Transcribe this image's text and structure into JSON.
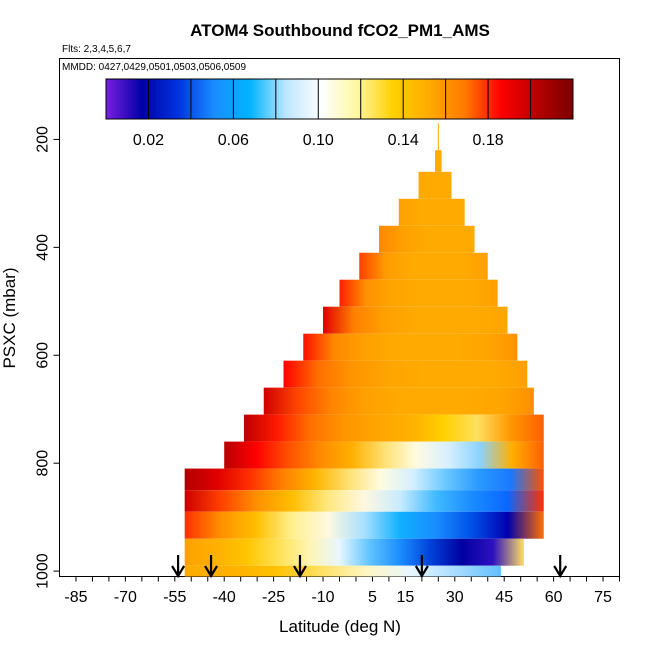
{
  "chart_data": {
    "type": "heatmap",
    "title": "ATOM4 Southbound fCO2_PM1_AMS",
    "flights_note": "Flts: 2,3,4,5,6,7",
    "dates_note": "MMDD: 0427,0429,0501,0503,0506,0509",
    "xlabel": "Latitude (deg N)",
    "ylabel": "PSXC (mbar)",
    "xlim": [
      -90,
      80
    ],
    "ylim": [
      1010,
      50
    ],
    "y_reversed": true,
    "x_ticks": [
      -85,
      -70,
      -55,
      -40,
      -25,
      -10,
      5,
      15,
      30,
      45,
      60,
      75
    ],
    "y_ticks": [
      200,
      400,
      600,
      800,
      1000
    ],
    "colorbar": {
      "range": [
        0.0,
        0.22
      ],
      "tick_values": [
        0.02,
        0.06,
        0.1,
        0.14,
        0.18
      ],
      "tick_labels": [
        "0.02",
        "0.06",
        "0.10",
        "0.14",
        "0.18"
      ],
      "colors": [
        "#7a1fe0",
        "#0000a8",
        "#0033e0",
        "#1a8cff",
        "#00b4ff",
        "#bde6ff",
        "#ffffff",
        "#fff7a0",
        "#ffd000",
        "#ffaa00",
        "#ff7a00",
        "#ff0000",
        "#b80000",
        "#7a0000"
      ]
    },
    "arrow_latitudes": [
      -54,
      -44,
      -17,
      20,
      62
    ],
    "levels": [
      {
        "p_top": 220,
        "p_bot": 260,
        "lat_min": 24,
        "lat_max": 26,
        "colors": [
          "#ffaa00"
        ]
      },
      {
        "p_top": 260,
        "p_bot": 310,
        "lat_min": 19,
        "lat_max": 29,
        "colors": [
          "#ffaa00"
        ]
      },
      {
        "p_top": 310,
        "p_bot": 360,
        "lat_min": 13,
        "lat_max": 33,
        "colors": [
          "#ffa000",
          "#ffaa00",
          "#ffaa00",
          "#ffaa00"
        ]
      },
      {
        "p_top": 360,
        "p_bot": 410,
        "lat_min": 7,
        "lat_max": 36,
        "colors": [
          "#ff8800",
          "#ffa000",
          "#ffaa00",
          "#ffaa00",
          "#ffaa00"
        ]
      },
      {
        "p_top": 410,
        "p_bot": 460,
        "lat_min": 1,
        "lat_max": 40,
        "colors": [
          "#ff4000",
          "#ff9a00",
          "#ffaa00",
          "#ffaa00",
          "#ffaa00",
          "#ffa000"
        ]
      },
      {
        "p_top": 460,
        "p_bot": 510,
        "lat_min": -5,
        "lat_max": 43,
        "colors": [
          "#ff2000",
          "#ff9000",
          "#ffa500",
          "#ffaa00",
          "#ffaa00",
          "#ffaa00",
          "#ffa000"
        ]
      },
      {
        "p_top": 510,
        "p_bot": 560,
        "lat_min": -10,
        "lat_max": 46,
        "colors": [
          "#e00000",
          "#ff8000",
          "#ffa000",
          "#ffaa00",
          "#ffaa00",
          "#ffaa00",
          "#ffa500"
        ]
      },
      {
        "p_top": 560,
        "p_bot": 610,
        "lat_min": -16,
        "lat_max": 49,
        "colors": [
          "#ff1000",
          "#ff8800",
          "#ffa000",
          "#ffaa00",
          "#ffaa00",
          "#ffaa00",
          "#ffa500",
          "#ff9500"
        ]
      },
      {
        "p_top": 610,
        "p_bot": 660,
        "lat_min": -22,
        "lat_max": 52,
        "colors": [
          "#ff0000",
          "#ff7000",
          "#ff9500",
          "#ffa500",
          "#ffaa00",
          "#ffaa00",
          "#ffaa00",
          "#ffa000"
        ]
      },
      {
        "p_top": 660,
        "p_bot": 710,
        "lat_min": -28,
        "lat_max": 54,
        "colors": [
          "#d00000",
          "#ff4500",
          "#ff8500",
          "#ffa000",
          "#ffaa00",
          "#ffaa00",
          "#ffaa00",
          "#ffa500",
          "#ff9000"
        ]
      },
      {
        "p_top": 710,
        "p_bot": 760,
        "lat_min": -34,
        "lat_max": 57,
        "colors": [
          "#c00000",
          "#ff1a00",
          "#ff7000",
          "#ff9500",
          "#ffa500",
          "#ffb000",
          "#ffd000",
          "#ffe060",
          "#ff9800",
          "#ff6000"
        ]
      },
      {
        "p_top": 760,
        "p_bot": 810,
        "lat_min": -40,
        "lat_max": 57,
        "colors": [
          "#b80000",
          "#ff0000",
          "#ff5000",
          "#ff8a00",
          "#ffb000",
          "#ffe070",
          "#fffbe0",
          "#d8f0ff",
          "#8ad2ff",
          "#ffb000",
          "#ff6000"
        ]
      },
      {
        "p_top": 810,
        "p_bot": 850,
        "lat_min": -52,
        "lat_max": 57,
        "colors": [
          "#b00000",
          "#e00000",
          "#ff3000",
          "#ff8000",
          "#ffb400",
          "#ffe070",
          "#fffce0",
          "#d4efff",
          "#6ac8ff",
          "#2a9aff",
          "#1a78ff",
          "#ff5000"
        ]
      },
      {
        "p_top": 850,
        "p_bot": 890,
        "lat_min": -52,
        "lat_max": 57,
        "colors": [
          "#cc0000",
          "#ff4000",
          "#ff9000",
          "#ffbe00",
          "#ffe880",
          "#fff8e0",
          "#c8ebff",
          "#40baff",
          "#1a8cff",
          "#0a66ff",
          "#ff3000"
        ]
      },
      {
        "p_top": 890,
        "p_bot": 940,
        "lat_min": -52,
        "lat_max": 57,
        "colors": [
          "#ff3000",
          "#ff9000",
          "#ffc000",
          "#fff090",
          "#fff8e0",
          "#a8e0ff",
          "#10b0ff",
          "#1a8cff",
          "#0050e8",
          "#0000b0",
          "#ff7000"
        ]
      },
      {
        "p_top": 940,
        "p_bot": 990,
        "lat_min": -52,
        "lat_max": 51,
        "colors": [
          "#ffa000",
          "#ffb000",
          "#ffc400",
          "#ffe050",
          "#fff4b0",
          "#e8f7ff",
          "#60c4ff",
          "#1a8cff",
          "#0040d8",
          "#0000a0",
          "#3010c0",
          "#ffe060"
        ]
      },
      {
        "p_top": 990,
        "p_bot": 1040,
        "lat_min": -52,
        "lat_max": 44,
        "colors": [
          "#ffaa00",
          "#ffb000",
          "#ffc000",
          "#ffe060",
          "#fff6c0",
          "#e8f7ff",
          "#a8dcff",
          "#60c0ff"
        ]
      }
    ]
  }
}
